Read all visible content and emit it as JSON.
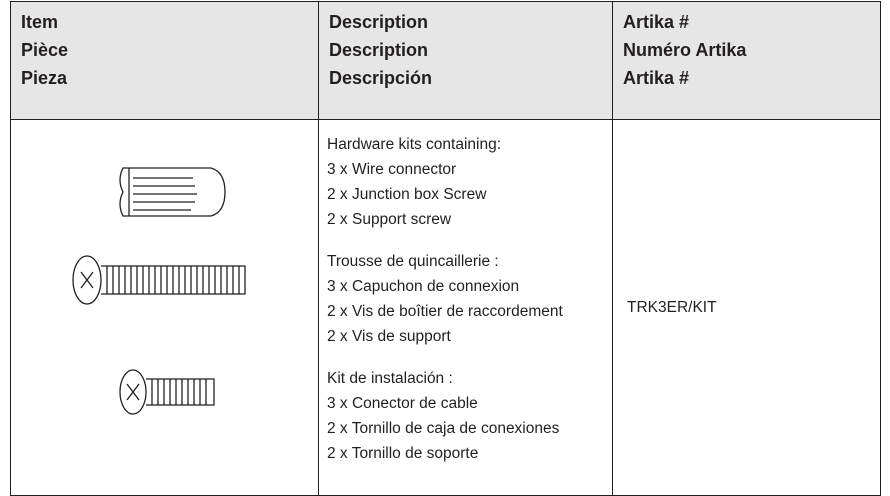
{
  "table": {
    "headers": [
      [
        "Item",
        "Pièce",
        "Pieza"
      ],
      [
        "Description",
        "Description",
        "Descripción"
      ],
      [
        "Artika #",
        "Numéro Artika",
        "Artika #"
      ]
    ],
    "rows": [
      {
        "description": [
          [
            "Hardware kits containing:",
            "3 x Wire connector",
            "2 x Junction box Screw",
            "2 x Support screw"
          ],
          [
            "Trousse de quincaillerie :",
            "3 x Capuchon de connexion",
            "2 x Vis de boîtier de raccordement",
            "2 x Vis de support"
          ],
          [
            "Kit de instalación :",
            "3 x Conector de cable",
            "2 x Tornillo de caja de conexiones",
            "2 x Tornillo de soporte"
          ]
        ],
        "part_number": "TRK3ER/KIT"
      }
    ]
  }
}
